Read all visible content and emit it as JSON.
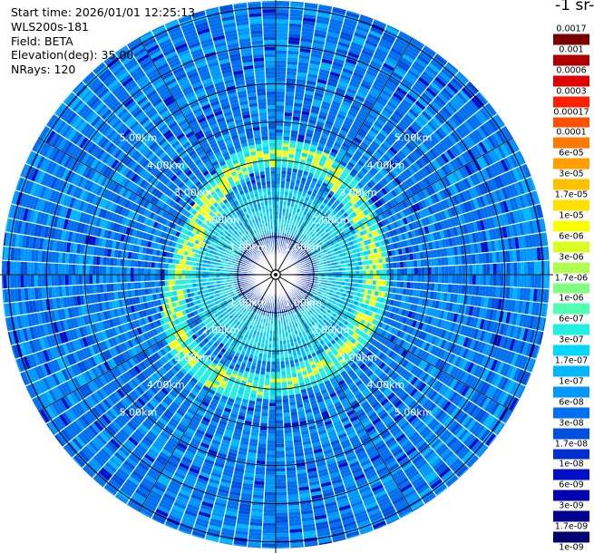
{
  "info": {
    "start_time": "Start time: 2026/01/01 12:25:13",
    "device": "WLS200s-181",
    "field": "Field: BETA",
    "elevation": "Elevation(deg): 35.00",
    "nrays": "NRays: 120"
  },
  "colorbar": {
    "title": "-1 sr-",
    "ticks": [
      "0.0017",
      "0.001",
      "0.0006",
      "0.0003",
      "0.00017",
      "0.0001",
      "6e-05",
      "3e-05",
      "1.7e-05",
      "1e-05",
      "6e-06",
      "3e-06",
      "1.7e-06",
      "1e-06",
      "6e-07",
      "3e-07",
      "1.7e-07",
      "1e-07",
      "6e-08",
      "3e-08",
      "1.7e-08",
      "1e-08",
      "6e-09",
      "3e-09",
      "1.7e-09",
      "1e-09"
    ],
    "colors": [
      "#7a0000",
      "#b20000",
      "#e00000",
      "#ff2000",
      "#ff5000",
      "#ff7a00",
      "#ffa000",
      "#ffc000",
      "#ffe000",
      "#f8ff00",
      "#d8ff20",
      "#b0ff50",
      "#80ff80",
      "#50ffb0",
      "#20f0e0",
      "#00d8ff",
      "#00b8ff",
      "#0098ff",
      "#0070f0",
      "#0050e0",
      "#0030d0",
      "#0010c8",
      "#0000b0",
      "#000090",
      "#000070"
    ]
  },
  "plot": {
    "range_labels": [
      "1.00km",
      "2.00km",
      "3.00km",
      "4.00km",
      "5.00km"
    ]
  }
}
